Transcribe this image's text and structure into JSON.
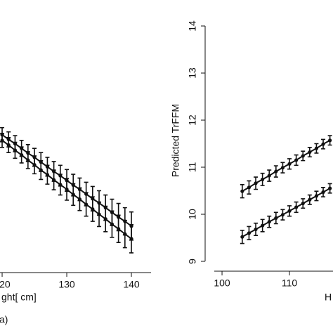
{
  "chart_data": [
    {
      "type": "line",
      "x_label": "ght[ cm]",
      "panel_label": "a)",
      "x": [
        120,
        121,
        122,
        123,
        124,
        125,
        126,
        127,
        128,
        129,
        130,
        131,
        132,
        133,
        134,
        135,
        136,
        137,
        138,
        139,
        140
      ],
      "series": [
        {
          "color": "#111111",
          "values": [
            11.69,
            11.59,
            11.5,
            11.4,
            11.3,
            11.21,
            11.11,
            11.01,
            10.91,
            10.82,
            10.72,
            10.62,
            10.53,
            10.43,
            10.33,
            10.24,
            10.14,
            10.04,
            9.94,
            9.85,
            9.75
          ],
          "errors": [
            0.15,
            0.16,
            0.17,
            0.17,
            0.18,
            0.19,
            0.2,
            0.2,
            0.21,
            0.22,
            0.23,
            0.23,
            0.24,
            0.25,
            0.26,
            0.26,
            0.27,
            0.28,
            0.29,
            0.29,
            0.3
          ]
        },
        {
          "color": "#111111",
          "values": [
            11.57,
            11.47,
            11.36,
            11.26,
            11.15,
            11.05,
            10.94,
            10.84,
            10.73,
            10.63,
            10.53,
            10.42,
            10.32,
            10.21,
            10.11,
            10.0,
            9.9,
            9.79,
            9.69,
            9.58,
            9.48
          ],
          "errors": [
            0.15,
            0.16,
            0.17,
            0.17,
            0.18,
            0.19,
            0.2,
            0.2,
            0.21,
            0.22,
            0.23,
            0.23,
            0.24,
            0.25,
            0.26,
            0.26,
            0.27,
            0.28,
            0.29,
            0.29,
            0.3
          ]
        }
      ],
      "xlim": [
        119.67,
        143.04
      ],
      "xticks": [
        120,
        130,
        140
      ],
      "ylim": [
        9,
        14
      ]
    },
    {
      "type": "line",
      "y_label": "Predicted TrFFM",
      "x_label": "H",
      "x": [
        103,
        104,
        105,
        106,
        107,
        108,
        109,
        110,
        111,
        112,
        113,
        114,
        115,
        116
      ],
      "series": [
        {
          "color": "#111111",
          "values": [
            10.49,
            10.57,
            10.66,
            10.74,
            10.82,
            10.91,
            10.99,
            11.07,
            11.15,
            11.24,
            11.32,
            11.4,
            11.49,
            11.57
          ],
          "errors": [
            0.14,
            0.14,
            0.13,
            0.13,
            0.12,
            0.12,
            0.11,
            0.11,
            0.11,
            0.1,
            0.1,
            0.1,
            0.1,
            0.1
          ]
        },
        {
          "color": "#111111",
          "values": [
            9.52,
            9.6,
            9.68,
            9.76,
            9.84,
            9.92,
            9.99,
            10.07,
            10.15,
            10.23,
            10.31,
            10.39,
            10.47,
            10.55
          ],
          "errors": [
            0.14,
            0.14,
            0.13,
            0.13,
            0.12,
            0.12,
            0.11,
            0.11,
            0.11,
            0.1,
            0.1,
            0.1,
            0.1,
            0.1
          ]
        }
      ],
      "xlim": [
        98.85,
        116.56
      ],
      "xticks": [
        100,
        110
      ],
      "ylim": [
        9,
        14
      ],
      "yticks": [
        9,
        10,
        11,
        12,
        13,
        14
      ]
    }
  ]
}
